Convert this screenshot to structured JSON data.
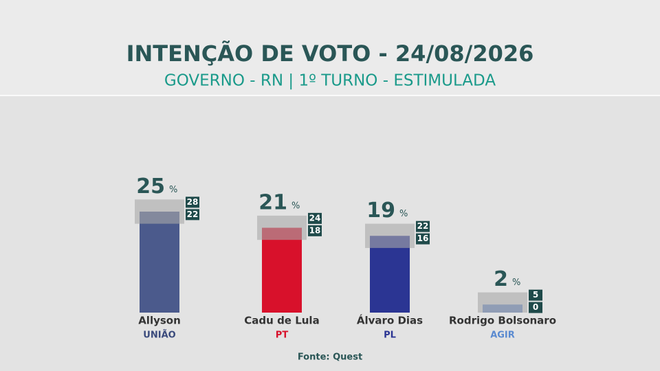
{
  "chart_data": {
    "type": "bar",
    "title": "INTENÇÃO DE VOTO - 24/08/2026",
    "subtitle": "GOVERNO - RN | 1º TURNO - ESTIMULADA",
    "categories": [
      "Allyson",
      "Cadu de Lula",
      "Álvaro Dias",
      "Rodrigo Bolsonaro"
    ],
    "parties": [
      "UNIÃO",
      "PT",
      "PL",
      "AGIR"
    ],
    "values": [
      25,
      21,
      19,
      2
    ],
    "unit": "%",
    "upper": [
      28,
      24,
      22,
      5
    ],
    "lower": [
      22,
      18,
      16,
      0
    ],
    "colors": [
      "#4b5a8c",
      "#d8112b",
      "#2b3593",
      "#6b8cc9"
    ],
    "party_colors": [
      "#3a4a7c",
      "#d8112b",
      "#2b3593",
      "#5a8ad0"
    ],
    "source": "Fonte: Quest"
  }
}
